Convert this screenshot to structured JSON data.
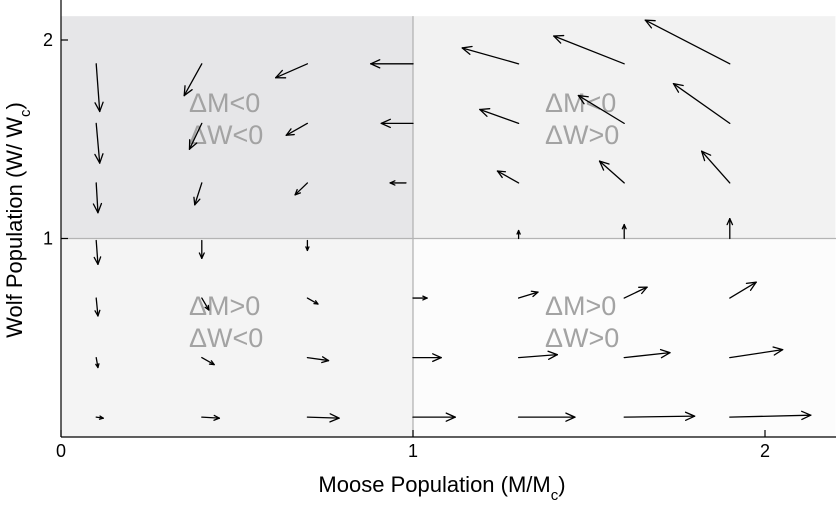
{
  "chart_data": {
    "type": "quiver",
    "xlabel": {
      "main": "Moose Population (M/M",
      "sub": "c",
      "close": ")"
    },
    "ylabel": {
      "main": "Wolf Population (W/ W",
      "sub": "c",
      "close": ")"
    },
    "xlim": [
      0,
      2.2
    ],
    "ylim": [
      0,
      2.12
    ],
    "x_ticks": [
      {
        "value": 0,
        "label": "0"
      },
      {
        "value": 1,
        "label": "1"
      },
      {
        "value": 2,
        "label": "2"
      }
    ],
    "y_ticks": [
      {
        "value": 1,
        "label": "1"
      },
      {
        "value": 2,
        "label": "2"
      }
    ],
    "grid_lines": {
      "x": 1,
      "y": 1
    },
    "regions": [
      {
        "name": "top-left",
        "x": [
          0,
          1
        ],
        "y": [
          1,
          2.12
        ],
        "color": "#e6e6e8",
        "line1": "ΔM<0",
        "line2": "ΔW<0"
      },
      {
        "name": "top-right",
        "x": [
          1,
          2.2
        ],
        "y": [
          1,
          2.12
        ],
        "color": "#f2f2f2",
        "line1": "ΔM<0",
        "line2": "ΔW>0"
      },
      {
        "name": "bottom-left",
        "x": [
          0,
          1
        ],
        "y": [
          0,
          1
        ],
        "color": "#f4f4f4",
        "line1": "ΔM>0",
        "line2": "ΔW<0"
      },
      {
        "name": "bottom-right",
        "x": [
          1,
          2.2
        ],
        "y": [
          0,
          1
        ],
        "color": "#fcfcfc",
        "line1": "ΔM>0",
        "line2": "ΔW>0"
      }
    ],
    "vectors": [
      {
        "x": 0.1,
        "y": 0.1,
        "dx": 0.02,
        "dy": -0.005
      },
      {
        "x": 0.4,
        "y": 0.1,
        "dx": 0.05,
        "dy": -0.005
      },
      {
        "x": 0.7,
        "y": 0.1,
        "dx": 0.09,
        "dy": -0.005
      },
      {
        "x": 1.0,
        "y": 0.1,
        "dx": 0.12,
        "dy": 0.0
      },
      {
        "x": 1.3,
        "y": 0.1,
        "dx": 0.16,
        "dy": 0.0
      },
      {
        "x": 1.6,
        "y": 0.1,
        "dx": 0.2,
        "dy": 0.005
      },
      {
        "x": 1.9,
        "y": 0.1,
        "dx": 0.23,
        "dy": 0.01
      },
      {
        "x": 0.1,
        "y": 0.4,
        "dx": 0.005,
        "dy": -0.05
      },
      {
        "x": 0.4,
        "y": 0.4,
        "dx": 0.035,
        "dy": -0.035
      },
      {
        "x": 0.7,
        "y": 0.4,
        "dx": 0.06,
        "dy": -0.015
      },
      {
        "x": 1.0,
        "y": 0.4,
        "dx": 0.08,
        "dy": 0.0
      },
      {
        "x": 1.3,
        "y": 0.4,
        "dx": 0.11,
        "dy": 0.015
      },
      {
        "x": 1.6,
        "y": 0.4,
        "dx": 0.13,
        "dy": 0.025
      },
      {
        "x": 1.9,
        "y": 0.4,
        "dx": 0.15,
        "dy": 0.04
      },
      {
        "x": 0.1,
        "y": 0.7,
        "dx": 0.005,
        "dy": -0.09
      },
      {
        "x": 0.4,
        "y": 0.7,
        "dx": 0.02,
        "dy": -0.06
      },
      {
        "x": 0.7,
        "y": 0.7,
        "dx": 0.03,
        "dy": -0.03
      },
      {
        "x": 1.0,
        "y": 0.7,
        "dx": 0.04,
        "dy": 0.0
      },
      {
        "x": 1.3,
        "y": 0.7,
        "dx": 0.055,
        "dy": 0.03
      },
      {
        "x": 1.6,
        "y": 0.7,
        "dx": 0.065,
        "dy": 0.055
      },
      {
        "x": 1.9,
        "y": 0.7,
        "dx": 0.075,
        "dy": 0.08
      },
      {
        "x": 0.1,
        "y": 0.99,
        "dx": 0.005,
        "dy": -0.12
      },
      {
        "x": 0.4,
        "y": 0.99,
        "dx": 0.0,
        "dy": -0.09
      },
      {
        "x": 0.7,
        "y": 0.99,
        "dx": 0.0,
        "dy": -0.05
      },
      {
        "x": 1.3,
        "y": 1.0,
        "dx": 0.0,
        "dy": 0.04
      },
      {
        "x": 1.6,
        "y": 1.0,
        "dx": 0.0,
        "dy": 0.07
      },
      {
        "x": 1.9,
        "y": 1.0,
        "dx": 0.0,
        "dy": 0.1
      },
      {
        "x": 0.1,
        "y": 1.28,
        "dx": 0.005,
        "dy": -0.15
      },
      {
        "x": 0.4,
        "y": 1.28,
        "dx": -0.02,
        "dy": -0.11
      },
      {
        "x": 0.7,
        "y": 1.28,
        "dx": -0.035,
        "dy": -0.06
      },
      {
        "x": 0.98,
        "y": 1.28,
        "dx": -0.045,
        "dy": 0.0
      },
      {
        "x": 1.3,
        "y": 1.28,
        "dx": -0.06,
        "dy": 0.06
      },
      {
        "x": 1.6,
        "y": 1.28,
        "dx": -0.07,
        "dy": 0.11
      },
      {
        "x": 1.9,
        "y": 1.28,
        "dx": -0.08,
        "dy": 0.16
      },
      {
        "x": 0.1,
        "y": 1.58,
        "dx": 0.01,
        "dy": -0.2
      },
      {
        "x": 0.4,
        "y": 1.58,
        "dx": -0.035,
        "dy": -0.13
      },
      {
        "x": 0.7,
        "y": 1.58,
        "dx": -0.06,
        "dy": -0.06
      },
      {
        "x": 1.0,
        "y": 1.58,
        "dx": -0.09,
        "dy": 0.0
      },
      {
        "x": 1.3,
        "y": 1.58,
        "dx": -0.11,
        "dy": 0.07
      },
      {
        "x": 1.6,
        "y": 1.58,
        "dx": -0.13,
        "dy": 0.14
      },
      {
        "x": 1.9,
        "y": 1.58,
        "dx": -0.16,
        "dy": 0.2
      },
      {
        "x": 0.1,
        "y": 1.88,
        "dx": 0.01,
        "dy": -0.24
      },
      {
        "x": 0.4,
        "y": 1.88,
        "dx": -0.05,
        "dy": -0.16
      },
      {
        "x": 0.7,
        "y": 1.88,
        "dx": -0.09,
        "dy": -0.07
      },
      {
        "x": 1.0,
        "y": 1.88,
        "dx": -0.12,
        "dy": 0.0
      },
      {
        "x": 1.3,
        "y": 1.88,
        "dx": -0.16,
        "dy": 0.08
      },
      {
        "x": 1.6,
        "y": 1.88,
        "dx": -0.2,
        "dy": 0.14
      },
      {
        "x": 1.9,
        "y": 1.88,
        "dx": -0.24,
        "dy": 0.22
      }
    ]
  }
}
